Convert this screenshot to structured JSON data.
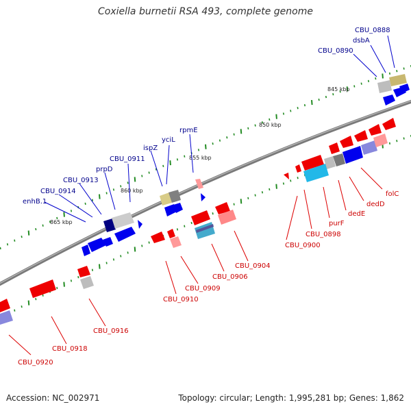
{
  "title": "Coxiella burnetii RSA 493, complete genome",
  "footer": {
    "accession": "Accession: NC_002971",
    "summary": "Topology: circular; Length: 1,995,281 bp; Genes: 1,862"
  },
  "colors": {
    "forward": "#0000ff",
    "reverse": "#ff0000",
    "backbone": "#888888",
    "tick": "#228b22",
    "forward_label": "#000099",
    "reverse_label": "#cc0000"
  },
  "scale_labels": [
    {
      "text": "845 kbp"
    },
    {
      "text": "850 kbp"
    },
    {
      "text": "855 kbp"
    },
    {
      "text": "860 kbp"
    },
    {
      "text": "865 kbp"
    }
  ],
  "forward_genes": [
    {
      "label": "CBU_0888"
    },
    {
      "label": "dsbA"
    },
    {
      "label": "CBU_0890"
    },
    {
      "label": "rpmE"
    },
    {
      "label": "yciL"
    },
    {
      "label": "ispZ"
    },
    {
      "label": "CBU_0911"
    },
    {
      "label": "prpD"
    },
    {
      "label": "CBU_0913"
    },
    {
      "label": "CBU_0914"
    },
    {
      "label": "enhB.1"
    }
  ],
  "reverse_genes": [
    {
      "label": "folC"
    },
    {
      "label": "dedD"
    },
    {
      "label": "dedE"
    },
    {
      "label": "purF"
    },
    {
      "label": "CBU_0898"
    },
    {
      "label": "CBU_0900"
    },
    {
      "label": "CBU_0904"
    },
    {
      "label": "CBU_0906"
    },
    {
      "label": "CBU_0909"
    },
    {
      "label": "CBU_0910"
    },
    {
      "label": "CBU_0916"
    },
    {
      "label": "CBU_0918"
    },
    {
      "label": "CBU_0920"
    }
  ]
}
